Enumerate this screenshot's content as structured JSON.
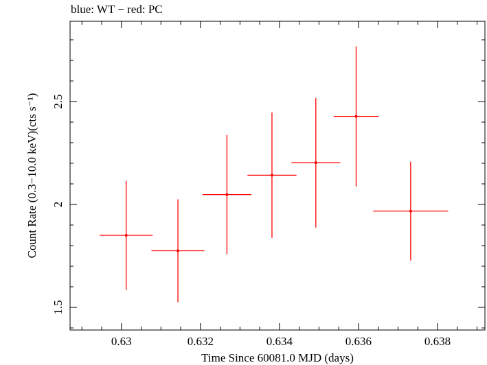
{
  "chart_data": {
    "type": "scatter",
    "title": "blue: WT − red: PC",
    "xlabel": "Time Since 60081.0 MJD (days)",
    "ylabel": "Count Rate (0.3−10.0 keV)(cts s⁻¹)",
    "xlim": [
      0.6287,
      0.6392
    ],
    "ylim": [
      1.39,
      2.89
    ],
    "x_ticks": [
      0.63,
      0.632,
      0.634,
      0.636,
      0.638
    ],
    "x_tick_labels": [
      "0.63",
      "0.632",
      "0.634",
      "0.636",
      "0.638"
    ],
    "y_ticks": [
      1.5,
      2,
      2.5
    ],
    "y_tick_labels": [
      "1.5",
      "2",
      "2.5"
    ],
    "grid": false,
    "series": [
      {
        "name": "PC",
        "color": "#ff0000",
        "points": [
          {
            "x": 0.63012,
            "xerr": 0.00067,
            "y": 1.85,
            "yerr": [
              0.265,
              0.265
            ]
          },
          {
            "x": 0.63143,
            "xerr": 0.00067,
            "y": 1.775,
            "yerr": [
              0.25,
              0.25
            ]
          },
          {
            "x": 0.63267,
            "xerr": 0.00062,
            "y": 2.048,
            "yerr": [
              0.29,
              0.29
            ]
          },
          {
            "x": 0.63381,
            "xerr": 0.00062,
            "y": 2.142,
            "yerr": [
              0.305,
              0.305
            ]
          },
          {
            "x": 0.63492,
            "xerr": 0.00062,
            "y": 2.203,
            "yerr": [
              0.315,
              0.315
            ]
          },
          {
            "x": 0.63594,
            "xerr": 0.00057,
            "y": 2.428,
            "yerr": [
              0.34,
              0.34
            ]
          },
          {
            "x": 0.63732,
            "xerr": 0.00095,
            "y": 1.968,
            "yerr": [
              0.24,
              0.24
            ]
          }
        ]
      }
    ]
  }
}
